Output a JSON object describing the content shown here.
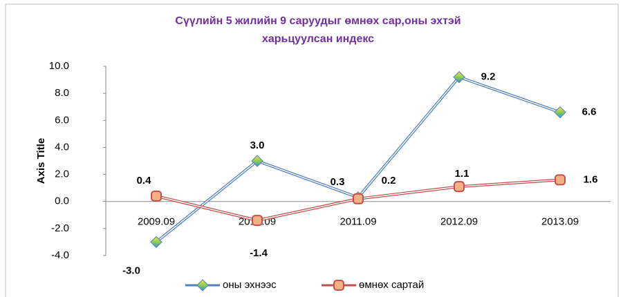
{
  "chart_data": {
    "type": "line",
    "title": "Сүүлийн 5 жилийн 9 саруудыг өмнөх сар,оны эхтэй харьцуулсан индекс",
    "y_label": "Axis Title",
    "categories": [
      "2009.09",
      "2010.09",
      "2011.09",
      "2012.09",
      "2013.09"
    ],
    "series": [
      {
        "name": "оны эхнээс",
        "color": "#4f81bd",
        "values": [
          -3.0,
          3.0,
          0.3,
          9.2,
          6.6
        ],
        "value_labels": [
          "-3.0",
          "3.0",
          "0.3",
          "9.2",
          "6.6"
        ]
      },
      {
        "name": "өмнөх сартай",
        "color": "#c0504d",
        "values": [
          0.4,
          -1.4,
          0.2,
          1.1,
          1.6
        ],
        "value_labels": [
          "0.4",
          "-1.4",
          "0.2",
          "1.1",
          "1.6"
        ]
      }
    ],
    "ylim": [
      -4,
      10
    ],
    "yticks": [
      {
        "value": -4,
        "label": "-4.0"
      },
      {
        "value": -2,
        "label": "-2.0"
      },
      {
        "value": 0,
        "label": "0.0"
      },
      {
        "value": 2,
        "label": "2.0"
      },
      {
        "value": 4,
        "label": "4.0"
      },
      {
        "value": 6,
        "label": "6.0"
      },
      {
        "value": 8,
        "label": "8.0"
      },
      {
        "value": 10,
        "label": "10.0"
      }
    ],
    "legend": "bottom"
  }
}
